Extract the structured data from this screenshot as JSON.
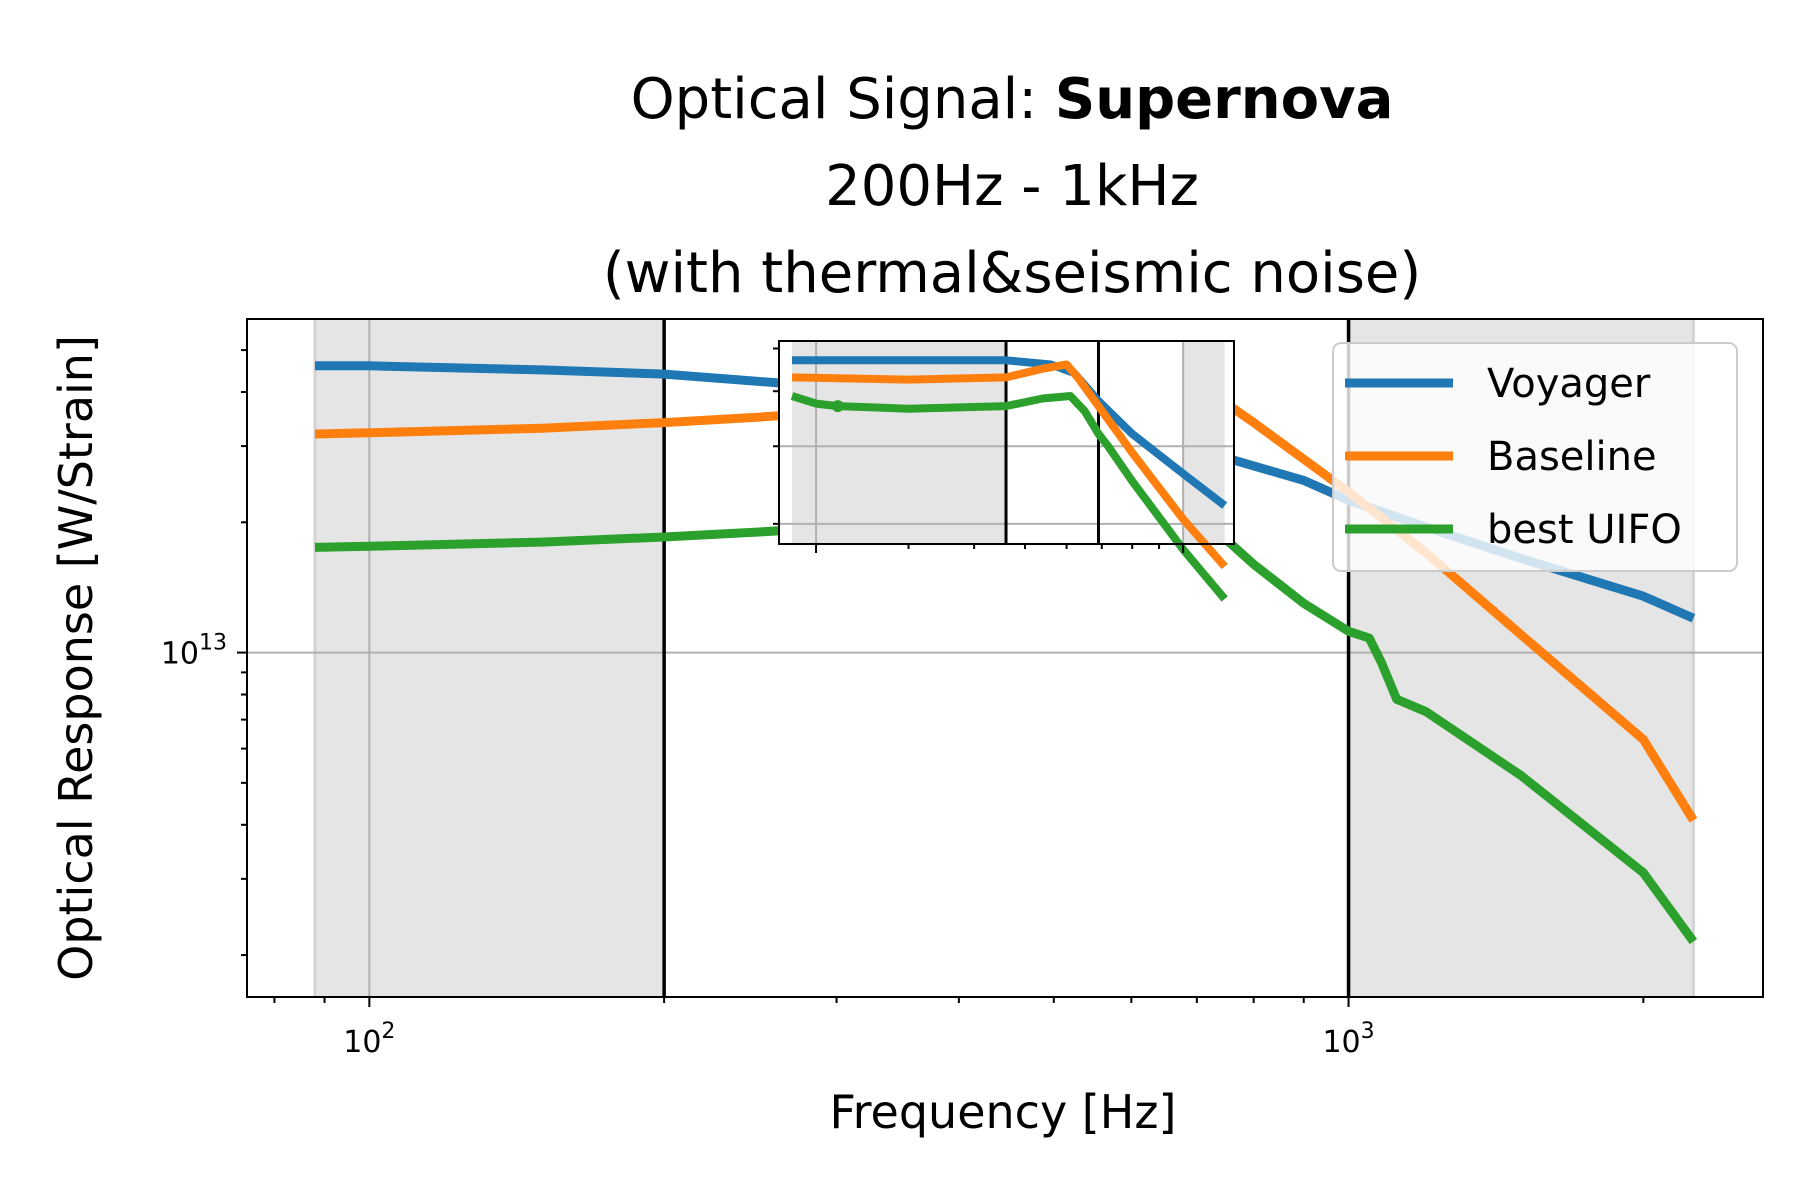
{
  "chart_data": {
    "type": "line",
    "title_prefix": "Optical Signal: ",
    "title_bold": "Supernova",
    "subtitle": "200Hz - 1kHz",
    "subtitle2": "(with thermal&seismic noise)",
    "xlabel": "Frequency [Hz]",
    "ylabel": "Optical Response [W/Strain]",
    "xscale": "log",
    "yscale": "log",
    "xlim": [
      75,
      2650
    ],
    "ylim": [
      1600000000000.0,
      59000000000000.0
    ],
    "x_tick_labels": [
      {
        "value": 100,
        "base": "10",
        "exp": "2"
      },
      {
        "value": 1000,
        "base": "10",
        "exp": "3"
      }
    ],
    "y_tick_labels": [
      {
        "value": 10000000000000.0,
        "base": "10",
        "exp": "13"
      }
    ],
    "grid": true,
    "shaded_bands_hz": [
      [
        88,
        200
      ],
      [
        1000,
        2250
      ]
    ],
    "vertical_lines_hz": [
      200,
      1000
    ],
    "legend_position": "upper right",
    "series": [
      {
        "name": "Voyager",
        "color": "#1f77b4",
        "x": [
          88,
          100,
          150,
          200,
          300,
          400,
          500,
          600,
          700,
          800,
          900,
          1000,
          1200,
          1500,
          2000,
          2250
        ],
        "y": [
          46000000000000.0,
          46000000000000.0,
          45000000000000.0,
          44000000000000.0,
          41000000000000.0,
          38500000000000.0,
          35500000000000.0,
          32500000000000.0,
          29500000000000.0,
          27000000000000.0,
          25000000000000.0,
          22500000000000.0,
          19500000000000.0,
          16500000000000.0,
          13500000000000.0,
          12000000000000.0
        ]
      },
      {
        "name": "Baseline",
        "color": "#ff7f0e",
        "x": [
          88,
          100,
          150,
          200,
          250,
          300,
          400,
          500,
          600,
          700,
          800,
          900,
          1000,
          1200,
          1500,
          2000,
          2250
        ],
        "y": [
          32000000000000.0,
          32200000000000.0,
          33000000000000.0,
          34000000000000.0,
          35000000000000.0,
          36000000000000.0,
          38500000000000.0,
          42000000000000.0,
          46000000000000.0,
          42000000000000.0,
          34000000000000.0,
          28000000000000.0,
          23500000000000.0,
          17000000000000.0,
          11000000000000.0,
          6300000000000.0,
          4100000000000.0
        ]
      },
      {
        "name": "best UIFO",
        "color": "#2ca02c",
        "x": [
          88,
          100,
          150,
          200,
          250,
          300,
          400,
          500,
          600,
          650,
          700,
          800,
          900,
          1000,
          1050,
          1080,
          1120,
          1200,
          1500,
          2000,
          2250
        ],
        "y": [
          17500000000000.0,
          17600000000000.0,
          18000000000000.0,
          18500000000000.0,
          19000000000000.0,
          19500000000000.0,
          20500000000000.0,
          22000000000000.0,
          24500000000000.0,
          25000000000000.0,
          21000000000000.0,
          16000000000000.0,
          13000000000000.0,
          11200000000000.0,
          10800000000000.0,
          9500000000000.0,
          7800000000000.0,
          7300000000000.0,
          5200000000000.0,
          3100000000000.0,
          2150000000000.0
        ]
      }
    ],
    "inset": {
      "description_free": true,
      "xlim": [
        170,
        1250
      ],
      "ylim": [
        18000000000000.0,
        52000000000000.0
      ],
      "x_ticks": [
        200,
        1000
      ],
      "y_ticks": [
        20000000000000.0,
        30000000000000.0
      ],
      "shaded_bands_hz": [
        [
          180,
          460
        ],
        [
          1000,
          1200
        ]
      ],
      "vertical_lines_hz": [
        460,
        690
      ],
      "series": [
        {
          "name": "Voyager",
          "color": "#1f77b4",
          "x": [
            180,
            300,
            460,
            560,
            620,
            690,
            800,
            1000,
            1200
          ],
          "y": [
            47000000000000.0,
            47000000000000.0,
            47000000000000.0,
            46000000000000.0,
            44000000000000.0,
            38000000000000.0,
            32000000000000.0,
            26000000000000.0,
            22000000000000.0
          ]
        },
        {
          "name": "Baseline",
          "color": "#ff7f0e",
          "x": [
            180,
            300,
            460,
            540,
            600,
            630,
            690,
            800,
            1000,
            1200
          ],
          "y": [
            43000000000000.0,
            42500000000000.0,
            43000000000000.0,
            45000000000000.0,
            46000000000000.0,
            43000000000000.0,
            37000000000000.0,
            29000000000000.0,
            20500000000000.0,
            16000000000000.0
          ]
        },
        {
          "name": "best UIFO",
          "color": "#2ca02c",
          "x": [
            180,
            200,
            220,
            300,
            460,
            540,
            610,
            650,
            690,
            720,
            800,
            1000,
            1200
          ],
          "y": [
            39000000000000.0,
            37500000000000.0,
            37000000000000.0,
            36500000000000.0,
            37000000000000.0,
            38500000000000.0,
            39000000000000.0,
            36000000000000.0,
            32000000000000.0,
            30000000000000.0,
            25000000000000.0,
            17500000000000.0,
            13500000000000.0
          ]
        }
      ]
    }
  }
}
